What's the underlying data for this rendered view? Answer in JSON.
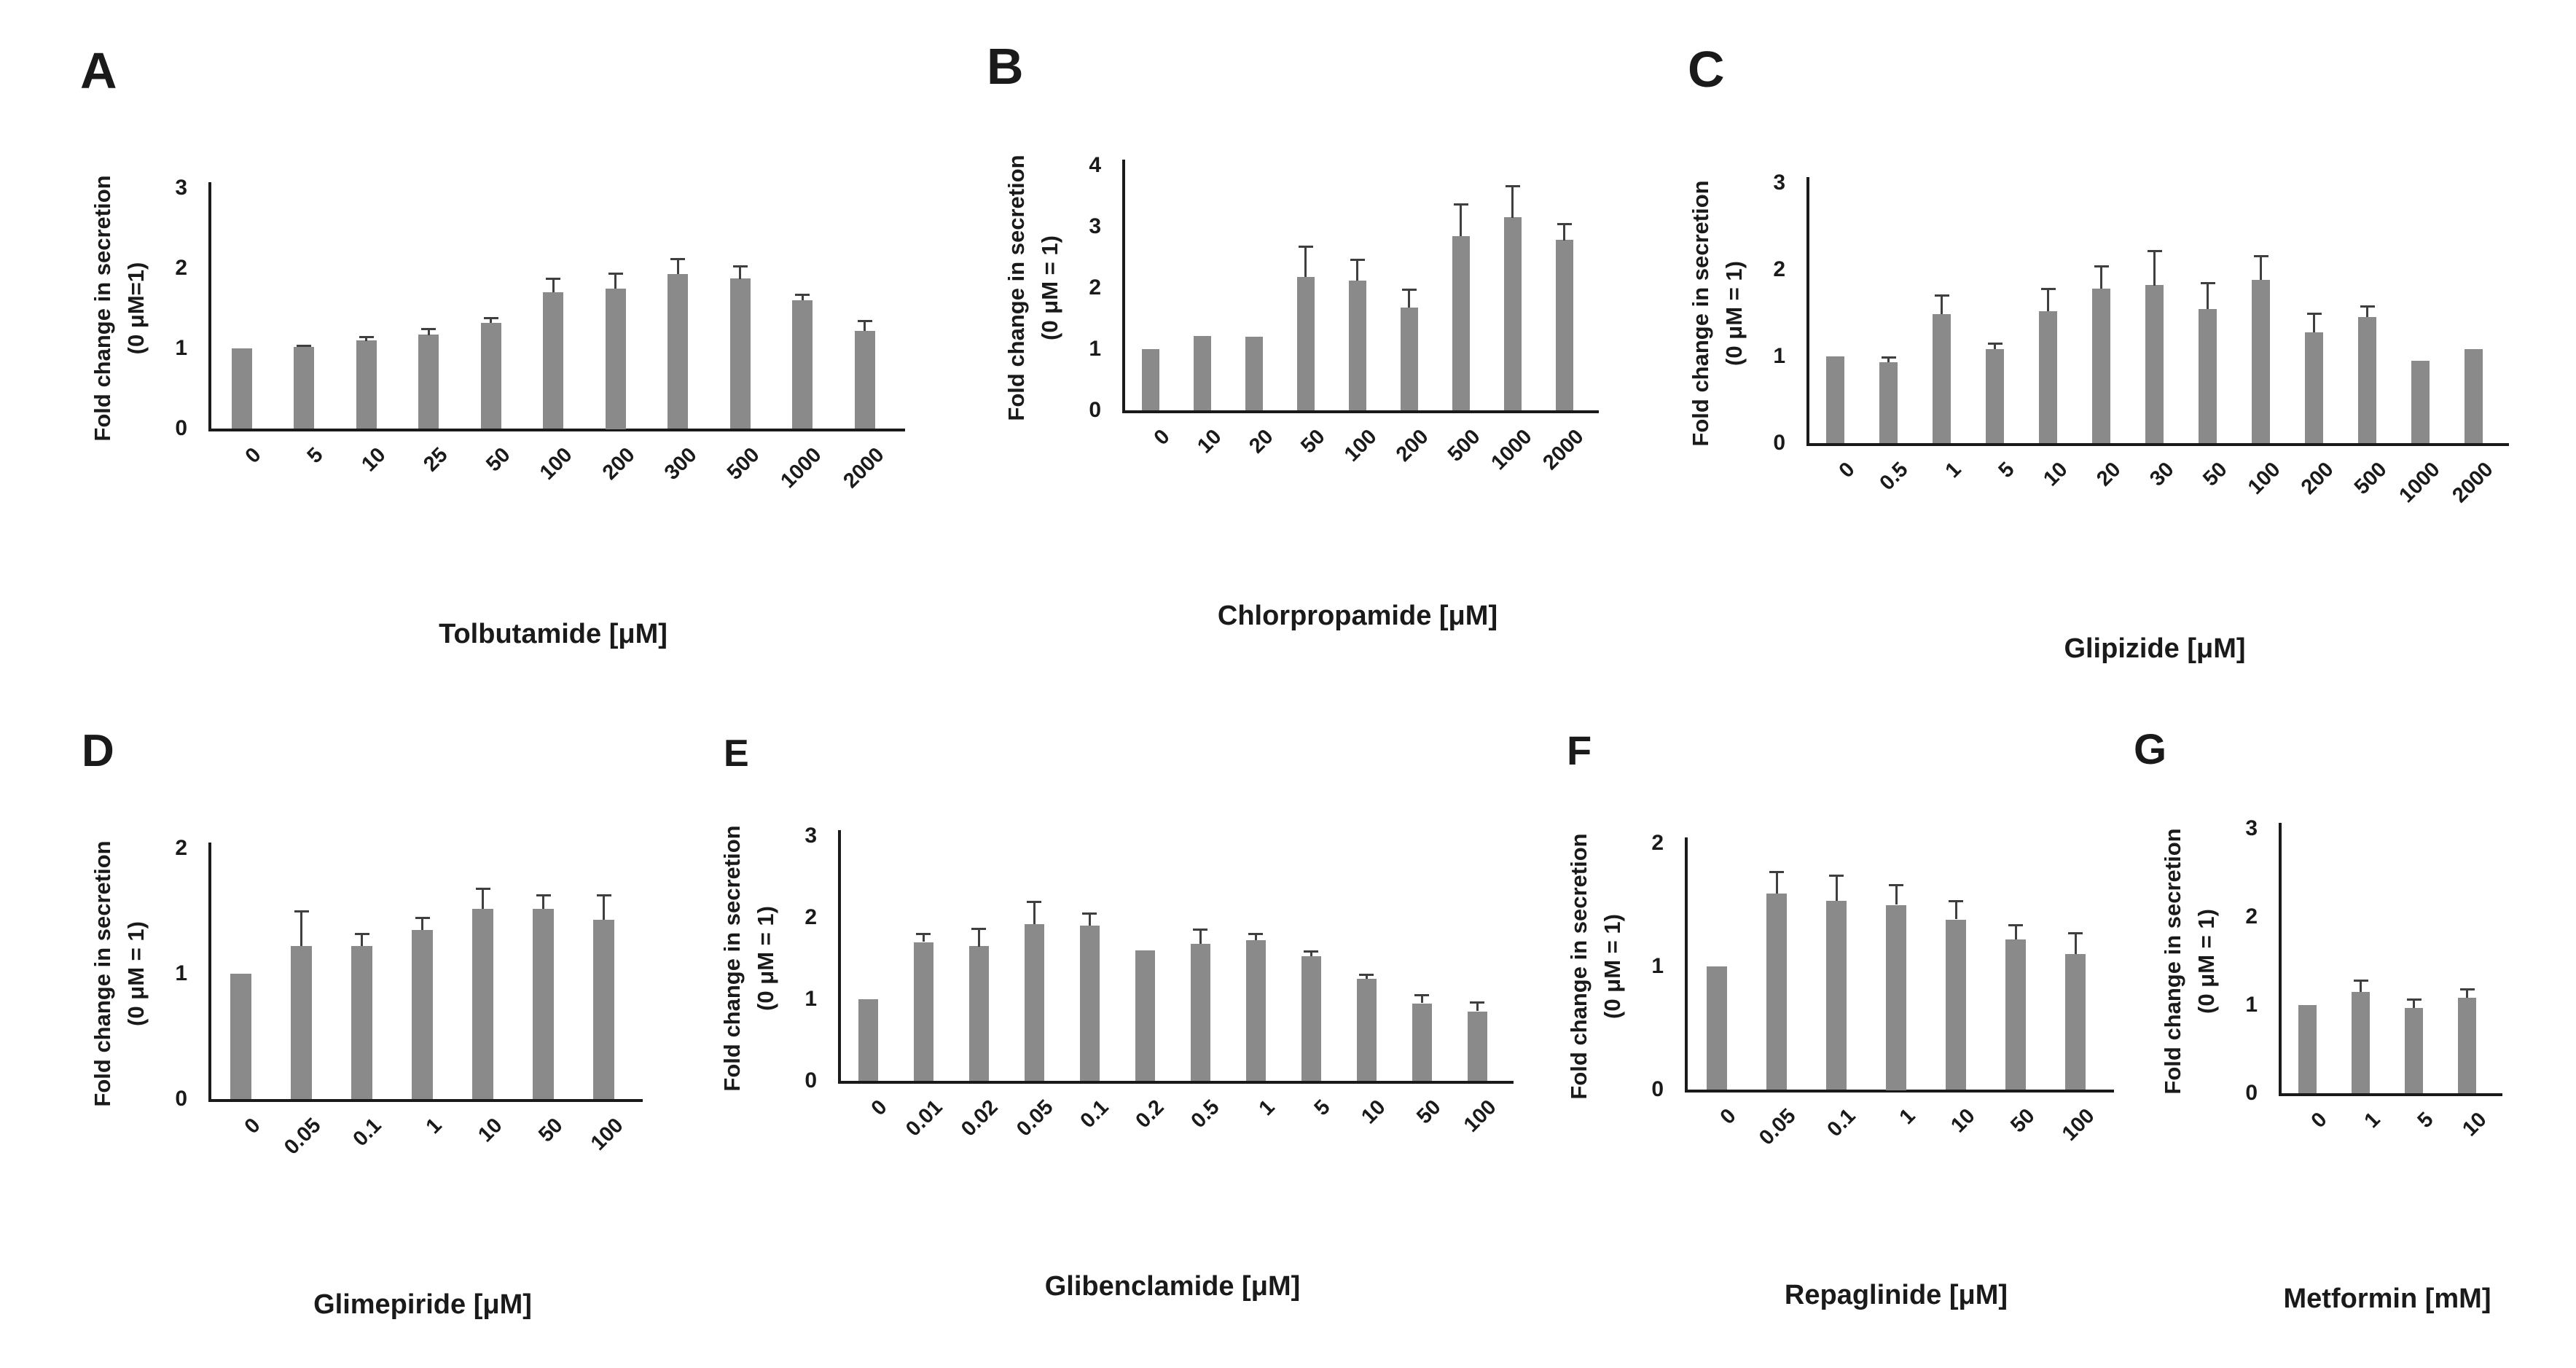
{
  "figure": {
    "background": "#ffffff",
    "bar_color": "#8a8a8a",
    "error_bar_color": "#3f3f3f",
    "axis_color": "#1a1a1a",
    "text_color": "#1a1a1a"
  },
  "chart_data": [
    {
      "panel": "A",
      "type": "bar",
      "xlabel": "Tolbutamide [μM]",
      "ylabel": [
        "Fold change in secretion",
        "(0 μM=1)"
      ],
      "categories": [
        "0",
        "5",
        "10",
        "25",
        "50",
        "100",
        "200",
        "300",
        "500",
        "1000",
        "2000"
      ],
      "values": [
        1.0,
        1.02,
        1.1,
        1.17,
        1.32,
        1.7,
        1.75,
        1.93,
        1.87,
        1.6,
        1.22
      ],
      "errors": [
        0,
        0.02,
        0.05,
        0.08,
        0.06,
        0.17,
        0.19,
        0.19,
        0.16,
        0.07,
        0.13
      ],
      "ylim": [
        0,
        3
      ],
      "yticks": [
        0,
        1,
        2,
        3
      ],
      "grid": false,
      "legend": "none"
    },
    {
      "panel": "B",
      "type": "bar",
      "xlabel": "Chlorpropamide [μM]",
      "ylabel": [
        "Fold change in secretion",
        "(0 μM = 1)"
      ],
      "categories": [
        "0",
        "10",
        "20",
        "50",
        "100",
        "200",
        "500",
        "1000",
        "2000"
      ],
      "values": [
        1.0,
        1.22,
        1.2,
        2.18,
        2.12,
        1.68,
        2.85,
        3.15,
        2.78
      ],
      "errors": [
        0,
        0,
        0,
        0.5,
        0.35,
        0.3,
        0.52,
        0.52,
        0.27
      ],
      "ylim": [
        0,
        4
      ],
      "yticks": [
        0,
        1,
        2,
        3,
        4
      ],
      "grid": false,
      "legend": "none"
    },
    {
      "panel": "C",
      "type": "bar",
      "xlabel": "Glipizide [μM]",
      "ylabel": [
        "Fold change in secretion",
        "(0 μM = 1)"
      ],
      "categories": [
        "0",
        "0.5",
        "1",
        "5",
        "10",
        "20",
        "30",
        "50",
        "100",
        "200",
        "500",
        "1000",
        "2000"
      ],
      "values": [
        1.0,
        0.93,
        1.49,
        1.08,
        1.52,
        1.78,
        1.82,
        1.55,
        1.88,
        1.28,
        1.45,
        0.95,
        1.08
      ],
      "errors": [
        0,
        0.06,
        0.22,
        0.07,
        0.26,
        0.26,
        0.4,
        0.3,
        0.28,
        0.22,
        0.13,
        0,
        0
      ],
      "ylim": [
        0,
        3
      ],
      "yticks": [
        0,
        1,
        2,
        3
      ],
      "grid": false,
      "legend": "none"
    },
    {
      "panel": "D",
      "type": "bar",
      "xlabel": "Glimepiride [μM]",
      "ylabel": [
        "Fold change in secretion",
        "(0 μM = 1)"
      ],
      "categories": [
        "0",
        "0.05",
        "0.1",
        "1",
        "10",
        "50",
        "100"
      ],
      "values": [
        1.0,
        1.22,
        1.22,
        1.35,
        1.52,
        1.52,
        1.43
      ],
      "errors": [
        0,
        0.28,
        0.1,
        0.1,
        0.16,
        0.11,
        0.2
      ],
      "ylim": [
        0,
        2
      ],
      "yticks": [
        0,
        1,
        2
      ],
      "grid": false,
      "legend": "none"
    },
    {
      "panel": "E",
      "type": "bar",
      "xlabel": "Glibenclamide [μM]",
      "ylabel": [
        "Fold change in secretion",
        "(0 μM = 1)"
      ],
      "categories": [
        "0",
        "0.01",
        "0.02",
        "0.05",
        "0.1",
        "0.2",
        "0.5",
        "1",
        "5",
        "10",
        "50",
        "100"
      ],
      "values": [
        1.0,
        1.7,
        1.65,
        1.92,
        1.9,
        1.6,
        1.68,
        1.72,
        1.53,
        1.25,
        0.95,
        0.85
      ],
      "errors": [
        0,
        0.1,
        0.22,
        0.28,
        0.15,
        0,
        0.18,
        0.08,
        0.06,
        0.05,
        0.1,
        0.11
      ],
      "ylim": [
        0,
        3
      ],
      "yticks": [
        0,
        1,
        2,
        3
      ],
      "grid": false,
      "legend": "none"
    },
    {
      "panel": "F",
      "type": "bar",
      "xlabel": "Repaglinide [μM]",
      "ylabel": [
        "Fold change in secretion",
        "(0 μM = 1)"
      ],
      "categories": [
        "0",
        "0.05",
        "0.1",
        "1",
        "10",
        "50",
        "100"
      ],
      "values": [
        1.0,
        1.59,
        1.53,
        1.5,
        1.38,
        1.22,
        1.1
      ],
      "errors": [
        0,
        0.18,
        0.21,
        0.16,
        0.15,
        0.12,
        0.17
      ],
      "ylim": [
        0,
        2
      ],
      "yticks": [
        0,
        1,
        2
      ],
      "grid": false,
      "legend": "none"
    },
    {
      "panel": "G",
      "type": "bar",
      "xlabel": "Metformin [mM]",
      "ylabel": [
        "Fold change in secretion",
        "(0 μM = 1)"
      ],
      "categories": [
        "0",
        "1",
        "5",
        "10"
      ],
      "values": [
        1.0,
        1.15,
        0.97,
        1.08
      ],
      "errors": [
        0,
        0.13,
        0.1,
        0.1
      ],
      "ylim": [
        0,
        3
      ],
      "yticks": [
        0,
        1,
        2,
        3
      ],
      "grid": false,
      "legend": "none"
    }
  ]
}
